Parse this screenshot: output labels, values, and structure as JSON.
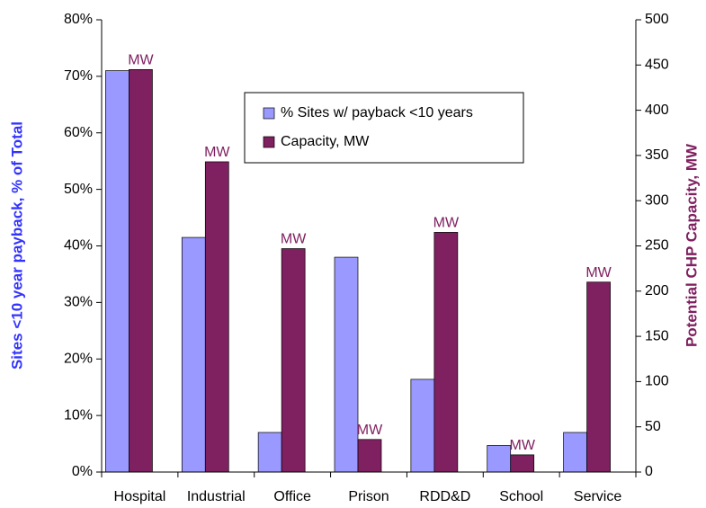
{
  "chart_data": {
    "type": "bar",
    "categories": [
      "Hospital",
      "Industrial",
      "Office",
      "Prison",
      "RDD&D",
      "School",
      "Service"
    ],
    "series": [
      {
        "name": "% Sites w/ payback <10 years",
        "color": "#9999ff",
        "values": [
          71,
          41.5,
          7,
          38,
          16.4,
          4.7,
          7
        ]
      },
      {
        "name": "Capacity, MW",
        "color": "#7f2060",
        "axis": "y2",
        "values": [
          445,
          343,
          247,
          36,
          265,
          19,
          210
        ]
      }
    ],
    "data_label": "MW",
    "ylabel": "Sites <10 year payback, % of Total",
    "y2label": "Potential CHP Capacity, MW",
    "ylabel_color": "#3333ff",
    "y2label_color": "#7f2060",
    "data_label_color": "#7f2060",
    "ylim": [
      0,
      80
    ],
    "yticks": [
      {
        "value": 0,
        "label": "0%"
      },
      {
        "value": 10,
        "label": "10%"
      },
      {
        "value": 20,
        "label": "20%"
      },
      {
        "value": 30,
        "label": "30%"
      },
      {
        "value": 40,
        "label": "40%"
      },
      {
        "value": 50,
        "label": "50%"
      },
      {
        "value": 60,
        "label": "60%"
      },
      {
        "value": 70,
        "label": "70%"
      },
      {
        "value": 80,
        "label": "80%"
      }
    ],
    "y2lim": [
      0,
      500
    ],
    "y2ticks": [
      0,
      50,
      100,
      150,
      200,
      250,
      300,
      350,
      400,
      450,
      500
    ],
    "grid": false
  }
}
